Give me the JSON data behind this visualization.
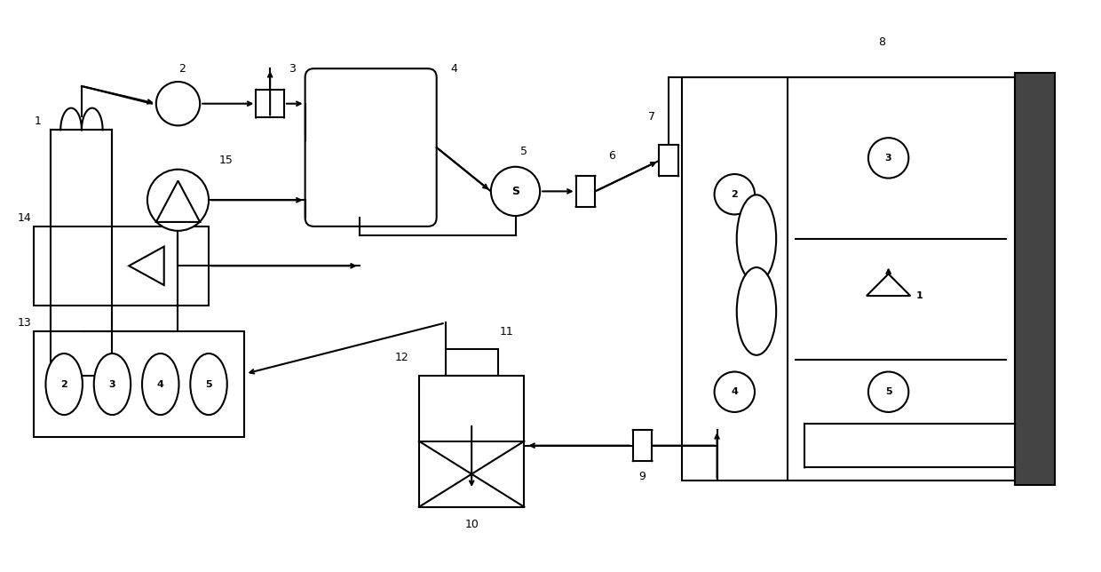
{
  "bg_color": "#ffffff",
  "line_color": "#000000",
  "lw": 1.5,
  "fig_width": 12.4,
  "fig_height": 6.44,
  "dpi": 100
}
